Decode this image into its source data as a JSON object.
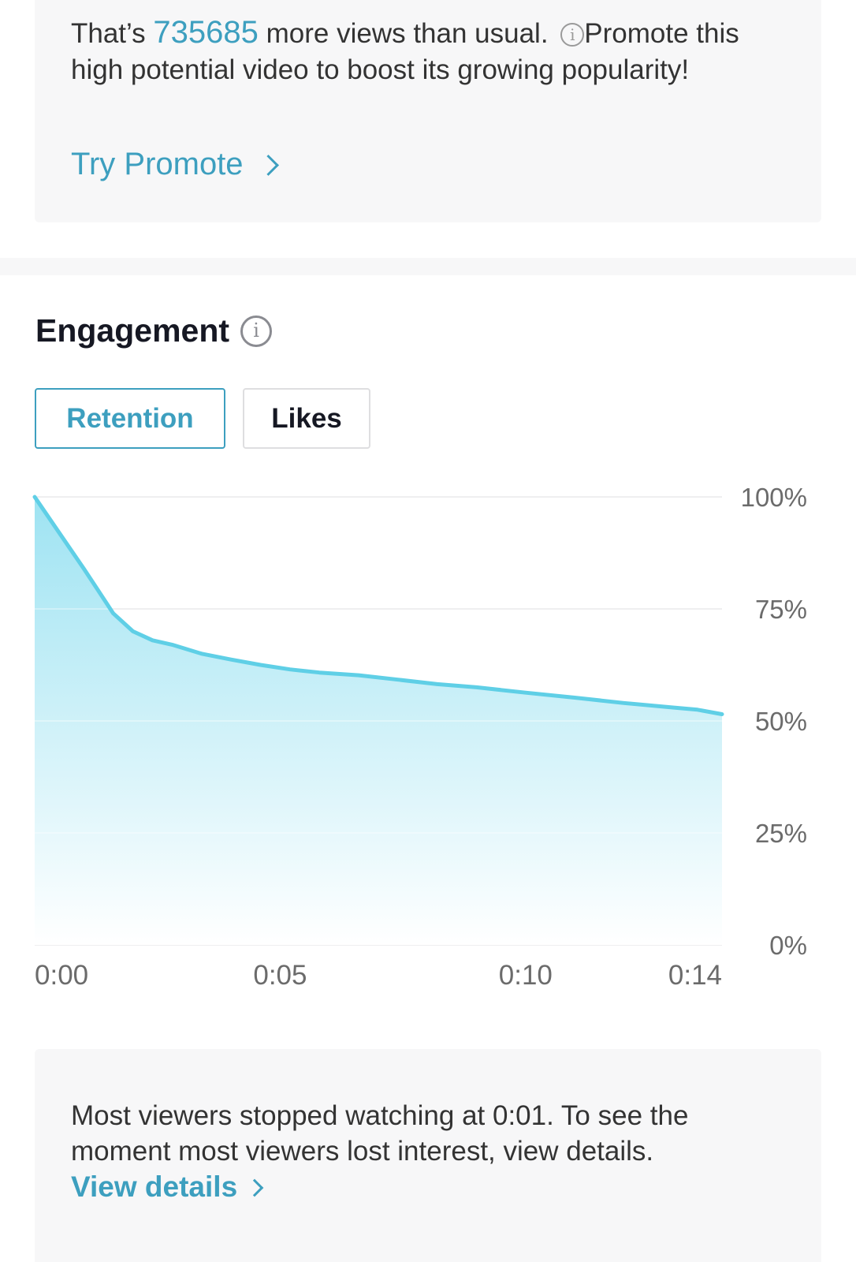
{
  "promo": {
    "text_before": "That’s ",
    "views_extra": "735685",
    "text_after": " more views than usual. ",
    "info_icon": "info-icon",
    "text_tail": "Promote this high potential video to boost its growing popularity!",
    "link_label": "Try Promote",
    "link_icon": "chevron-right-icon"
  },
  "engagement": {
    "title": "Engagement",
    "info_icon": "info-icon",
    "tabs": [
      {
        "label": "Retention",
        "selected": true
      },
      {
        "label": "Likes",
        "selected": false
      }
    ]
  },
  "chart_data": {
    "type": "area",
    "title": "",
    "xlabel": "",
    "ylabel": "",
    "x_ticks": [
      "0:00",
      "0:05",
      "0:10",
      "0:14"
    ],
    "y_ticks": [
      "100%",
      "75%",
      "50%",
      "25%",
      "0%"
    ],
    "ylim": [
      0,
      100
    ],
    "xlim": [
      0,
      14
    ],
    "grid": true,
    "series": [
      {
        "x": [
          0,
          0.5,
          1.0,
          1.3,
          1.6,
          2.0,
          2.4,
          2.8,
          3.4,
          4.0,
          4.6,
          5.2,
          5.8,
          6.6,
          7.4,
          8.2,
          9.0,
          10.0,
          11.0,
          12.0,
          13.0,
          13.5,
          14.0
        ],
        "values": [
          100,
          92,
          84,
          79,
          74,
          70,
          68,
          67,
          65,
          63.7,
          62.5,
          61.5,
          60.8,
          60.2,
          59.2,
          58.2,
          57.5,
          56.3,
          55.2,
          54,
          53,
          52.5,
          51.5
        ]
      }
    ],
    "colors": {
      "line": "#5fcfe6",
      "fill_top": "#9ee3f2",
      "fill_bottom": "#ffffff",
      "grid": "#e6e6e8"
    }
  },
  "insight": {
    "text": "Most viewers stopped watching at 0:01. To see the moment most viewers lost interest, view details.",
    "link_label": "View details",
    "link_icon": "chevron-right-icon"
  }
}
